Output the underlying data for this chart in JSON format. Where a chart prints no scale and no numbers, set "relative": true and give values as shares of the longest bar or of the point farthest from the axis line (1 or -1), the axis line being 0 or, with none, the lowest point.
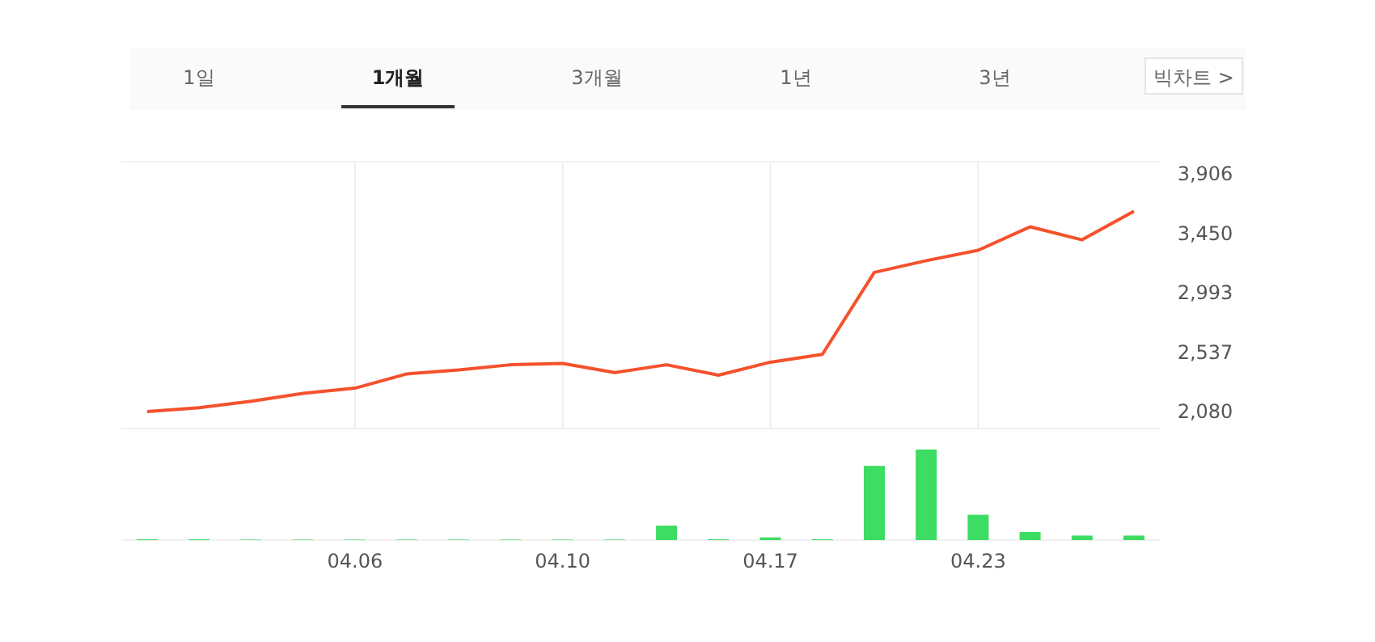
{
  "chart_data": [
    {
      "type": "other",
      "annotations": [
        "1일",
        "1개월",
        "3개월",
        "1년",
        "3년",
        "빅차트 >"
      ]
    },
    {
      "type": "line",
      "categories": [
        null,
        null,
        null,
        null,
        "04.06",
        null,
        null,
        null,
        "04.10",
        null,
        null,
        null,
        "04.17",
        null,
        null,
        null,
        "04.23",
        null,
        null,
        null
      ],
      "series": [
        {
          "color": "#f4512c",
          "values": [
            2080,
            2110,
            2160,
            2220,
            2260,
            2370,
            2400,
            2440,
            2450,
            2380,
            2440,
            2360,
            2460,
            2520,
            3150,
            3240,
            3320,
            3500,
            3400,
            3620
          ]
        }
      ],
      "ylim": [
        1950,
        4000
      ],
      "yticks": [
        {
          "value": 2080,
          "label": "2,080"
        },
        {
          "value": 2537,
          "label": "2,537"
        },
        {
          "value": 2993,
          "label": "2,993"
        },
        {
          "value": 3450,
          "label": "3,450"
        },
        {
          "value": 3906,
          "label": "3,906"
        }
      ],
      "grid": "x",
      "tick_labels": "y",
      "marker": "none"
    },
    {
      "type": "bar",
      "relative": true,
      "categories": [
        null,
        null,
        null,
        null,
        "04.06",
        null,
        null,
        null,
        "04.10",
        null,
        null,
        null,
        "04.17",
        null,
        null,
        null,
        "04.23",
        null,
        null,
        null
      ],
      "series": [
        {
          "color": "#3ddc63",
          "values": [
            0.01,
            0.01,
            0.005,
            0.005,
            0.005,
            0.005,
            0.005,
            0.005,
            0.005,
            0.005,
            0.16,
            0.01,
            0.03,
            0.01,
            0.82,
            1,
            0.28,
            0.09,
            0.05,
            0.05
          ]
        }
      ]
    }
  ]
}
